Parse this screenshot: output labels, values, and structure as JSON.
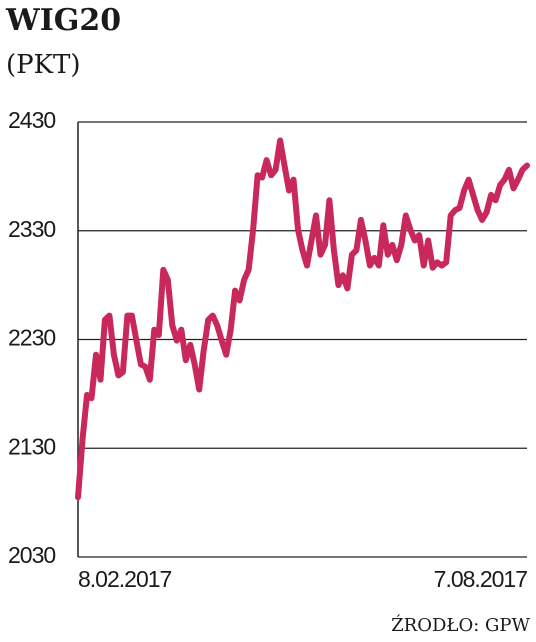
{
  "chart_data": {
    "type": "line",
    "title": "WIG20",
    "subtitle": "(PKT)",
    "source": "ŹRODŁO: GPW",
    "categories": [
      "8.02.2017",
      null,
      null,
      null,
      null,
      null,
      null,
      null,
      null,
      null,
      null,
      null,
      null,
      null,
      null,
      null,
      null,
      null,
      null,
      null,
      null,
      null,
      null,
      null,
      null,
      null,
      null,
      null,
      null,
      null,
      null,
      null,
      null,
      null,
      null,
      null,
      null,
      null,
      null,
      null,
      null,
      null,
      null,
      null,
      null,
      null,
      null,
      null,
      null,
      null,
      null,
      null,
      null,
      null,
      null,
      null,
      null,
      null,
      null,
      null,
      null,
      null,
      null,
      null,
      null,
      null,
      null,
      null,
      null,
      null,
      null,
      null,
      null,
      null,
      null,
      null,
      null,
      null,
      null,
      null,
      null,
      null,
      null,
      null,
      null,
      null,
      null,
      null,
      null,
      null,
      null,
      null,
      null,
      null,
      null,
      null,
      null,
      null,
      null,
      null,
      "7.08.2017"
    ],
    "series": [
      {
        "color": "#c8285a",
        "values": [
          2085,
          2138,
          2179,
          2176,
          2216,
          2193,
          2248,
          2252,
          2216,
          2197,
          2200,
          2252,
          2252,
          2229,
          2207,
          2205,
          2193,
          2239,
          2234,
          2294,
          2285,
          2243,
          2229,
          2239,
          2211,
          2225,
          2207,
          2184,
          2220,
          2248,
          2252,
          2243,
          2229,
          2216,
          2239,
          2275,
          2266,
          2285,
          2294,
          2331,
          2381,
          2379,
          2395,
          2381,
          2386,
          2413,
          2390,
          2367,
          2377,
          2331,
          2312,
          2298,
          2321,
          2344,
          2308,
          2317,
          2358,
          2312,
          2280,
          2289,
          2277,
          2308,
          2312,
          2340,
          2321,
          2298,
          2305,
          2298,
          2335,
          2308,
          2317,
          2303,
          2317,
          2344,
          2331,
          2321,
          2326,
          2298,
          2321,
          2296,
          2301,
          2298,
          2301,
          2344,
          2349,
          2351,
          2367,
          2377,
          2363,
          2349,
          2340,
          2347,
          2363,
          2358,
          2372,
          2377,
          2386,
          2369,
          2377,
          2386,
          2390
        ]
      }
    ],
    "ylim": [
      2030,
      2430
    ],
    "yticks": [
      2030,
      2130,
      2230,
      2330,
      2430
    ],
    "grid": true
  }
}
